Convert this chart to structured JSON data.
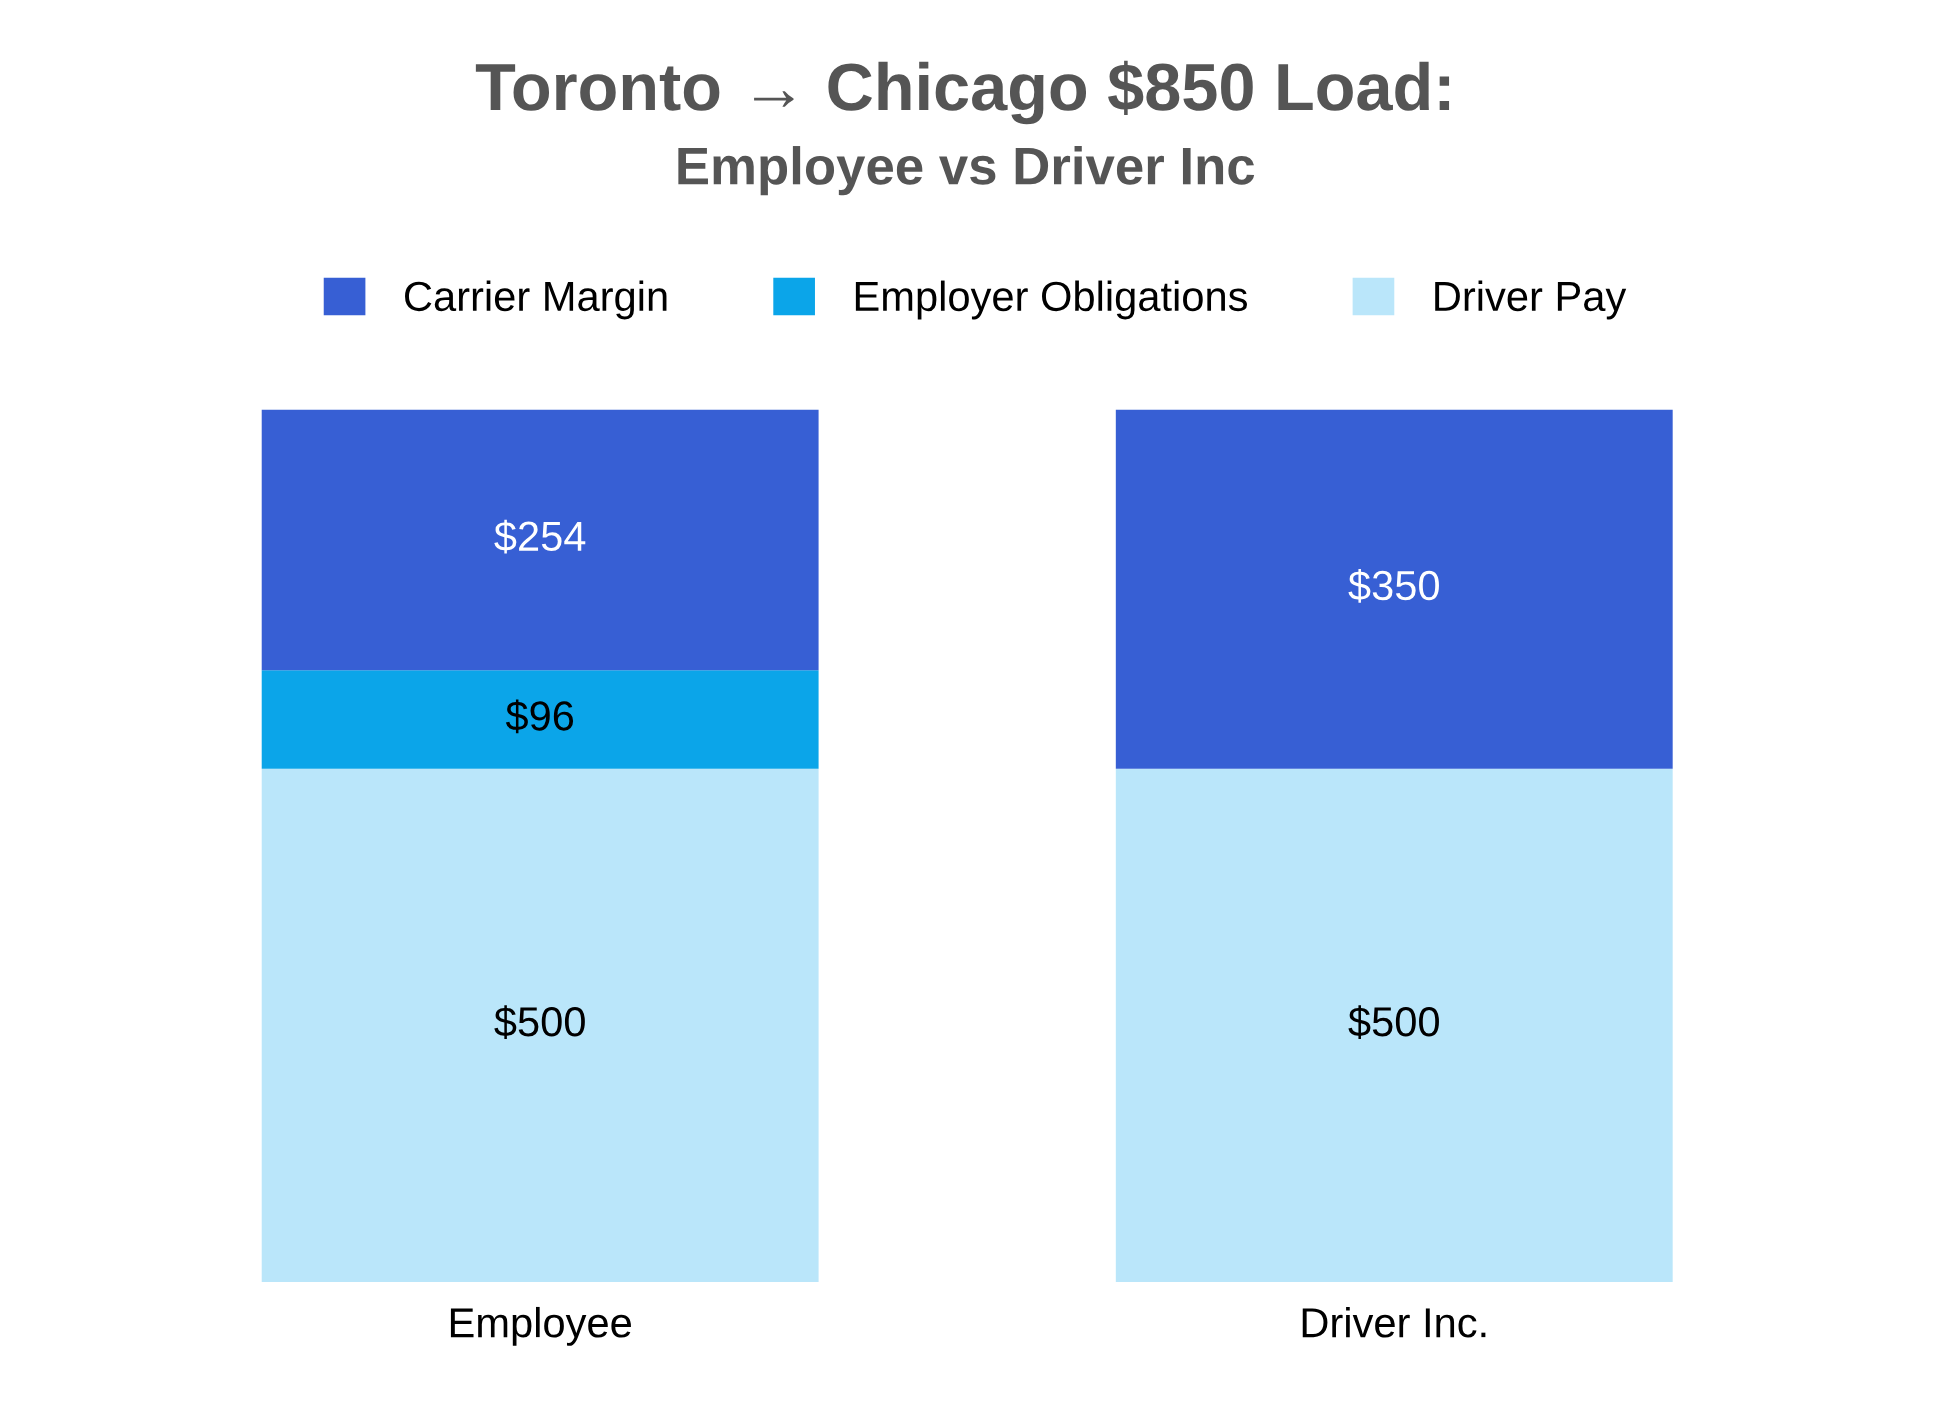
{
  "chart_data": {
    "type": "bar",
    "title": "Toronto → Chicago $850 Load:",
    "subtitle": "Employee vs Driver Inc",
    "categories": [
      "Employee",
      "Driver Inc."
    ],
    "stacked": true,
    "legend": "top",
    "grid": false,
    "series": [
      {
        "name": "Driver Pay",
        "color": "#bae6fa",
        "values": [
          500,
          500
        ],
        "value_labels": [
          "$500",
          "$500"
        ]
      },
      {
        "name": "Employer Obligations",
        "color": "#0ba5e9",
        "values": [
          96,
          null
        ],
        "value_labels": [
          "$96",
          null
        ]
      },
      {
        "name": "Carrier Margin",
        "color": "#375fd4",
        "values": [
          254,
          350
        ],
        "value_labels": [
          "$254",
          "$350"
        ]
      }
    ]
  }
}
